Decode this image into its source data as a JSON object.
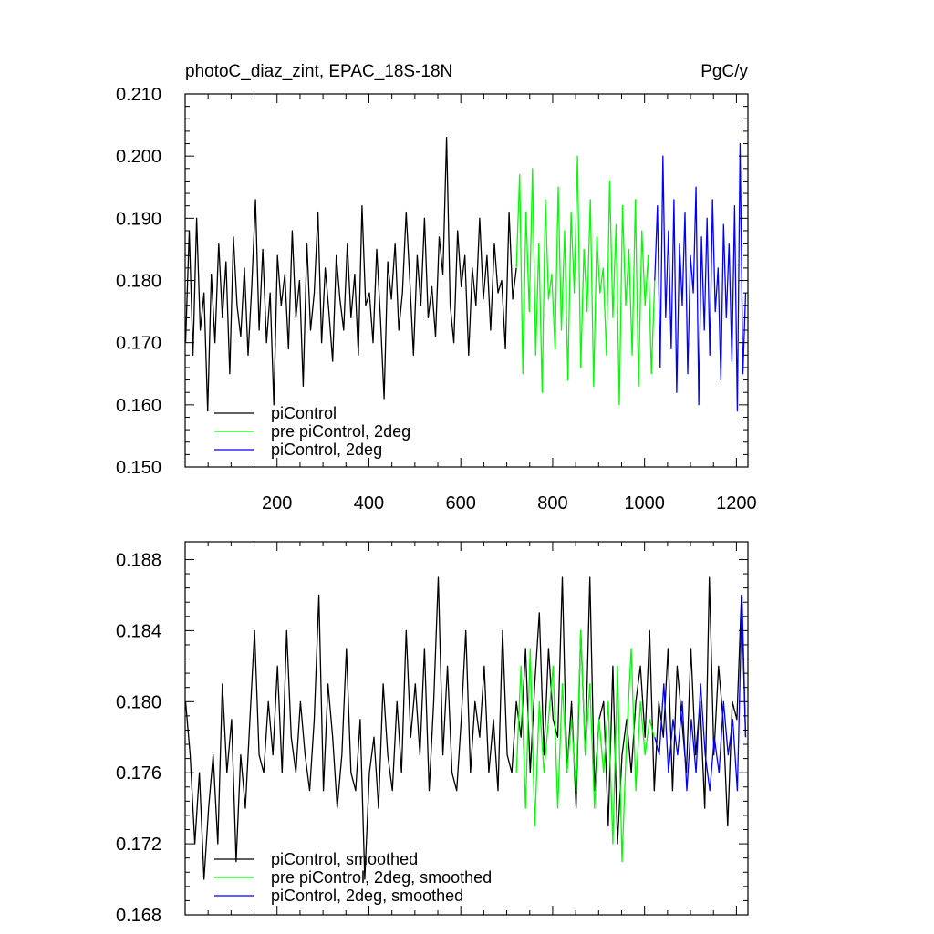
{
  "chart_data": [
    {
      "type": "line",
      "title_left": "photoC_diaz_zint, EPAC_18S-18N",
      "title_right": "PgC/y",
      "xlim": [
        0,
        1225
      ],
      "ylim": [
        0.15,
        0.21
      ],
      "x_ticks": [
        200,
        400,
        600,
        800,
        1000,
        1200
      ],
      "x_tick_labels": [
        "200",
        "400",
        "600",
        "800",
        "1000",
        "1200"
      ],
      "y_ticks": [
        0.15,
        0.16,
        0.17,
        0.18,
        0.19,
        0.2,
        0.21
      ],
      "y_tick_labels": [
        "0.150",
        "0.160",
        "0.170",
        "0.180",
        "0.190",
        "0.200",
        "0.210"
      ],
      "legend_position": "bottom-left",
      "series": [
        {
          "name": "piControl",
          "color": "#000000",
          "x": [
            1,
            9,
            17,
            25,
            33,
            41,
            49,
            57,
            65,
            73,
            81,
            89,
            97,
            105,
            113,
            121,
            129,
            137,
            145,
            153,
            161,
            169,
            177,
            185,
            193,
            201,
            209,
            217,
            225,
            233,
            241,
            249,
            257,
            265,
            273,
            281,
            289,
            297,
            305,
            313,
            321,
            329,
            337,
            345,
            353,
            361,
            369,
            377,
            385,
            393,
            401,
            409,
            417,
            425,
            433,
            441,
            449,
            457,
            465,
            473,
            481,
            489,
            497,
            505,
            513,
            521,
            529,
            537,
            545,
            553,
            561,
            569,
            577,
            585,
            593,
            601,
            609,
            617,
            625,
            633,
            641,
            649,
            657,
            665,
            673,
            681,
            689,
            697,
            705,
            713,
            721
          ],
          "y": [
            0.17,
            0.188,
            0.168,
            0.19,
            0.172,
            0.178,
            0.159,
            0.181,
            0.17,
            0.186,
            0.174,
            0.183,
            0.165,
            0.187,
            0.176,
            0.171,
            0.182,
            0.168,
            0.179,
            0.193,
            0.172,
            0.185,
            0.17,
            0.178,
            0.16,
            0.184,
            0.176,
            0.181,
            0.169,
            0.188,
            0.174,
            0.18,
            0.163,
            0.186,
            0.172,
            0.178,
            0.191,
            0.17,
            0.182,
            0.175,
            0.167,
            0.184,
            0.177,
            0.172,
            0.186,
            0.174,
            0.181,
            0.168,
            0.192,
            0.176,
            0.178,
            0.17,
            0.185,
            0.174,
            0.161,
            0.183,
            0.177,
            0.186,
            0.172,
            0.178,
            0.191,
            0.18,
            0.168,
            0.184,
            0.176,
            0.19,
            0.174,
            0.179,
            0.171,
            0.187,
            0.181,
            0.203,
            0.176,
            0.17,
            0.188,
            0.179,
            0.184,
            0.168,
            0.182,
            0.176,
            0.19,
            0.177,
            0.184,
            0.172,
            0.186,
            0.178,
            0.18,
            0.169,
            0.191,
            0.177,
            0.182
          ]
        },
        {
          "name": "pre piControl, 2deg",
          "color": "#00ff00",
          "x": [
            721,
            728,
            735,
            742,
            749,
            756,
            763,
            770,
            777,
            784,
            791,
            798,
            805,
            812,
            819,
            826,
            833,
            840,
            847,
            854,
            861,
            868,
            875,
            882,
            889,
            896,
            903,
            910,
            917,
            924,
            931,
            938,
            945,
            952,
            959,
            966,
            973,
            980,
            987,
            994,
            1001,
            1008,
            1015,
            1022
          ],
          "y": [
            0.182,
            0.197,
            0.165,
            0.191,
            0.175,
            0.198,
            0.168,
            0.186,
            0.162,
            0.193,
            0.177,
            0.181,
            0.169,
            0.195,
            0.172,
            0.188,
            0.164,
            0.191,
            0.178,
            0.2,
            0.166,
            0.185,
            0.175,
            0.193,
            0.163,
            0.187,
            0.178,
            0.182,
            0.168,
            0.196,
            0.174,
            0.189,
            0.16,
            0.192,
            0.176,
            0.185,
            0.168,
            0.193,
            0.163,
            0.188,
            0.176,
            0.184,
            0.165,
            0.18
          ]
        },
        {
          "name": "piControl, 2deg",
          "color": "#0000ff",
          "x": [
            1022,
            1028,
            1034,
            1040,
            1046,
            1052,
            1058,
            1064,
            1070,
            1076,
            1082,
            1088,
            1094,
            1100,
            1106,
            1112,
            1118,
            1124,
            1130,
            1136,
            1142,
            1148,
            1154,
            1160,
            1166,
            1172,
            1178,
            1184,
            1190,
            1196,
            1202,
            1208,
            1214,
            1220
          ],
          "y": [
            0.18,
            0.192,
            0.166,
            0.2,
            0.174,
            0.188,
            0.169,
            0.193,
            0.162,
            0.186,
            0.176,
            0.191,
            0.165,
            0.184,
            0.178,
            0.195,
            0.16,
            0.187,
            0.172,
            0.19,
            0.168,
            0.193,
            0.175,
            0.182,
            0.164,
            0.189,
            0.174,
            0.186,
            0.167,
            0.192,
            0.159,
            0.202,
            0.165,
            0.178
          ]
        }
      ]
    },
    {
      "type": "line",
      "xlim": [
        0,
        1225
      ],
      "ylim": [
        0.168,
        0.189
      ],
      "x_ticks": [
        200,
        400,
        600,
        800,
        1000,
        1200
      ],
      "y_ticks": [
        0.168,
        0.172,
        0.176,
        0.18,
        0.184,
        0.188
      ],
      "y_tick_labels": [
        "0.168",
        "0.172",
        "0.176",
        "0.180",
        "0.184",
        "0.188"
      ],
      "legend_position": "bottom-left",
      "series": [
        {
          "name": "piControl, smoothed",
          "color": "#000000",
          "x": [
            1,
            11,
            21,
            31,
            41,
            51,
            61,
            71,
            81,
            91,
            101,
            111,
            121,
            131,
            141,
            151,
            161,
            171,
            181,
            191,
            201,
            211,
            221,
            231,
            241,
            251,
            261,
            271,
            281,
            291,
            301,
            311,
            321,
            331,
            341,
            351,
            361,
            371,
            381,
            391,
            401,
            411,
            421,
            431,
            441,
            451,
            461,
            471,
            481,
            491,
            501,
            511,
            521,
            531,
            541,
            551,
            561,
            571,
            581,
            591,
            601,
            611,
            621,
            631,
            641,
            651,
            661,
            671,
            681,
            691,
            701,
            711,
            721,
            731,
            741,
            751,
            761,
            771,
            781,
            791,
            801,
            811,
            821,
            831,
            841,
            851,
            861,
            871,
            881,
            891,
            901,
            911,
            921,
            931,
            941,
            951,
            961,
            971,
            981,
            991,
            1001,
            1011,
            1021,
            1031,
            1041,
            1051,
            1061,
            1071,
            1081,
            1091,
            1101,
            1111,
            1121,
            1131,
            1141,
            1151,
            1161,
            1171,
            1181,
            1191,
            1201,
            1211,
            1220
          ],
          "y": [
            0.18,
            0.177,
            0.172,
            0.176,
            0.17,
            0.174,
            0.177,
            0.172,
            0.181,
            0.176,
            0.179,
            0.171,
            0.177,
            0.174,
            0.179,
            0.184,
            0.177,
            0.176,
            0.18,
            0.177,
            0.182,
            0.176,
            0.184,
            0.178,
            0.176,
            0.18,
            0.177,
            0.175,
            0.179,
            0.186,
            0.175,
            0.181,
            0.178,
            0.174,
            0.177,
            0.183,
            0.176,
            0.175,
            0.179,
            0.17,
            0.176,
            0.178,
            0.174,
            0.181,
            0.177,
            0.175,
            0.18,
            0.176,
            0.184,
            0.178,
            0.181,
            0.177,
            0.183,
            0.175,
            0.18,
            0.187,
            0.177,
            0.182,
            0.176,
            0.175,
            0.179,
            0.184,
            0.176,
            0.18,
            0.178,
            0.182,
            0.176,
            0.179,
            0.175,
            0.184,
            0.177,
            0.176,
            0.18,
            0.178,
            0.183,
            0.176,
            0.181,
            0.185,
            0.177,
            0.183,
            0.179,
            0.178,
            0.187,
            0.176,
            0.18,
            0.174,
            0.184,
            0.177,
            0.187,
            0.175,
            0.179,
            0.18,
            0.173,
            0.182,
            0.172,
            0.177,
            0.179,
            0.176,
            0.18,
            0.182,
            0.178,
            0.184,
            0.175,
            0.18,
            0.178,
            0.183,
            0.175,
            0.182,
            0.179,
            0.176,
            0.183,
            0.177,
            0.18,
            0.174,
            0.187,
            0.177,
            0.182,
            0.179,
            0.173,
            0.18,
            0.179,
            0.186,
            0.178
          ]
        },
        {
          "name": "pre piControl, 2deg, smoothed",
          "color": "#00ff00",
          "x": [
            721,
            731,
            741,
            751,
            761,
            771,
            781,
            791,
            801,
            811,
            821,
            831,
            841,
            851,
            861,
            871,
            881,
            891,
            901,
            911,
            921,
            931,
            941,
            951,
            961,
            971,
            981,
            991,
            1001,
            1011,
            1021
          ],
          "y": [
            0.176,
            0.182,
            0.174,
            0.183,
            0.173,
            0.18,
            0.176,
            0.179,
            0.182,
            0.174,
            0.181,
            0.176,
            0.179,
            0.175,
            0.184,
            0.177,
            0.181,
            0.174,
            0.179,
            0.176,
            0.18,
            0.172,
            0.182,
            0.171,
            0.178,
            0.183,
            0.175,
            0.18,
            0.177,
            0.179,
            0.178
          ]
        },
        {
          "name": "piControl, 2deg, smoothed",
          "color": "#0000ff",
          "x": [
            1022,
            1032,
            1042,
            1052,
            1062,
            1072,
            1082,
            1092,
            1102,
            1112,
            1122,
            1132,
            1142,
            1152,
            1162,
            1172,
            1182,
            1192,
            1202,
            1212,
            1220
          ],
          "y": [
            0.178,
            0.177,
            0.181,
            0.176,
            0.179,
            0.177,
            0.18,
            0.175,
            0.179,
            0.176,
            0.181,
            0.177,
            0.175,
            0.178,
            0.176,
            0.18,
            0.177,
            0.179,
            0.175,
            0.186,
            0.178
          ]
        }
      ]
    }
  ]
}
